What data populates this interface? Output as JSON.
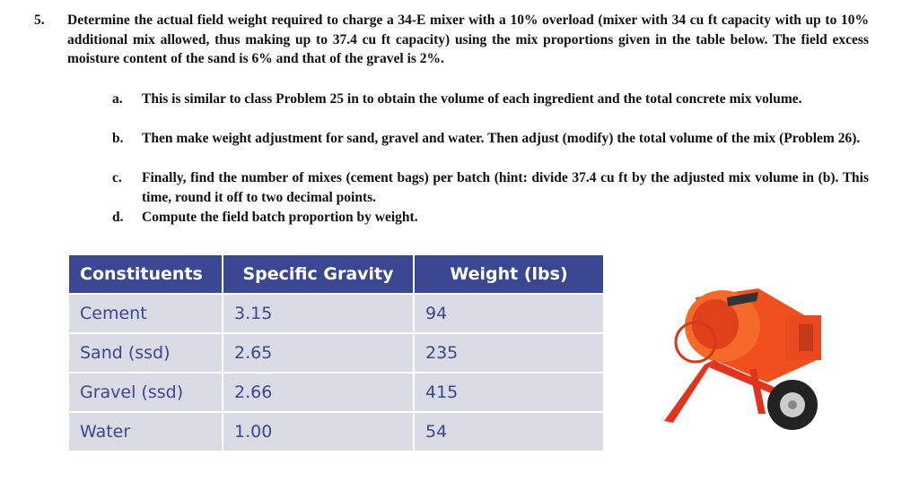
{
  "problem": {
    "number": "5.",
    "text": "Determine the actual field weight required to charge a 34-E mixer with a 10% overload (mixer with 34 cu ft capacity with up to 10% additional mix allowed, thus making up to 37.4 cu ft capacity) using the mix proportions given in the table below. The field excess moisture content of the sand is 6% and that of the gravel is 2%.",
    "items": [
      {
        "label": "a.",
        "text": "This is similar to class Problem 25 in to obtain the volume of each ingredient and the total concrete mix volume."
      },
      {
        "label": "b.",
        "text": "Then make weight adjustment for sand, gravel and water. Then adjust (modify) the total volume of the mix (Problem 26)."
      },
      {
        "label": "c.",
        "text": "Finally, find the number of mixes (cement bags) per batch (hint: divide 37.4 cu ft by the adjusted mix volume in (b). This time, round it off to two decimal points."
      },
      {
        "label": "d.",
        "text": "Compute the field batch proportion by weight."
      }
    ]
  },
  "table": {
    "header": [
      "Constituents",
      "Specific Gravity",
      "Weight (lbs)"
    ],
    "rows": [
      [
        "Cement",
        "3.15",
        "94"
      ],
      [
        "Sand (ssd)",
        "2.65",
        "235"
      ],
      [
        "Gravel (ssd)",
        "2.66",
        "415"
      ],
      [
        "Water",
        "1.00",
        "54"
      ]
    ]
  }
}
